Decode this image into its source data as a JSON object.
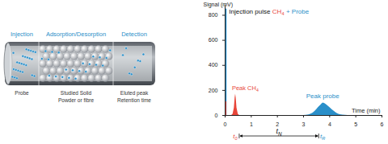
{
  "diagram": {
    "color": "#2a8fc9",
    "stages": [
      {
        "label": "Injection",
        "caption": [
          "Probe"
        ]
      },
      {
        "label": "Adsorption/Desorption",
        "caption": [
          "Studied Solid",
          "Powder or fibre"
        ]
      },
      {
        "label": "Detection",
        "caption": [
          "Eluted peak",
          "Retention time"
        ]
      }
    ]
  },
  "chart_data": {
    "type": "area",
    "xlabel": "Time (min)",
    "ylabel": "Signal (mV)",
    "xlim": [
      0,
      6
    ],
    "xticks": [
      0,
      1,
      2,
      3,
      4,
      5,
      6
    ],
    "ylim": [
      0,
      880
    ],
    "yticks": [
      0,
      200,
      400,
      600,
      800
    ],
    "grid": false,
    "series": [
      {
        "color": "#2a8fc9",
        "label": [
          {
            "text": "Injection pulse",
            "color": "#111111"
          },
          {
            "text": "CH",
            "subscript": "4",
            "color": "#e8463a"
          },
          {
            "text": "+ Probe",
            "color": "#2a8fc9"
          }
        ],
        "x": [
          0,
          0,
          0.07,
          0.07
        ],
        "values": [
          0,
          850,
          850,
          0
        ]
      },
      {
        "color": "#e8463a",
        "label": [
          {
            "text": "Peak CH",
            "subscript": "4",
            "color": "#e8463a"
          }
        ],
        "x": [
          0,
          0,
          0.06,
          0.06,
          0.25,
          0.3,
          0.35,
          0.38,
          0.4,
          0.42,
          0.45,
          0.5,
          0.55,
          0.7
        ],
        "values": [
          0,
          110,
          110,
          0,
          0,
          10,
          60,
          140,
          170,
          140,
          60,
          10,
          0,
          0
        ]
      },
      {
        "color": "#2a8fc9",
        "label": [
          {
            "text": "Peak probe",
            "color": "#2a8fc9"
          }
        ],
        "x": [
          0.7,
          3.0,
          3.2,
          3.4,
          3.6,
          3.7,
          3.75,
          3.8,
          3.9,
          4.1,
          4.3,
          4.5,
          4.7,
          6
        ],
        "values": [
          0,
          0,
          5,
          25,
          70,
          92,
          100,
          97,
          82,
          45,
          15,
          3,
          0,
          0
        ]
      }
    ],
    "retention": [
      {
        "text": "t",
        "subscript": "0",
        "x": 0.4,
        "color": "#e8463a"
      },
      {
        "text": "t",
        "subscript": "R",
        "x": 3.75,
        "color": "#2a8fc9"
      }
    ],
    "interval": {
      "text": "t",
      "subscript": "N",
      "from": 0.4,
      "to": 3.75,
      "color": "#111111"
    }
  }
}
